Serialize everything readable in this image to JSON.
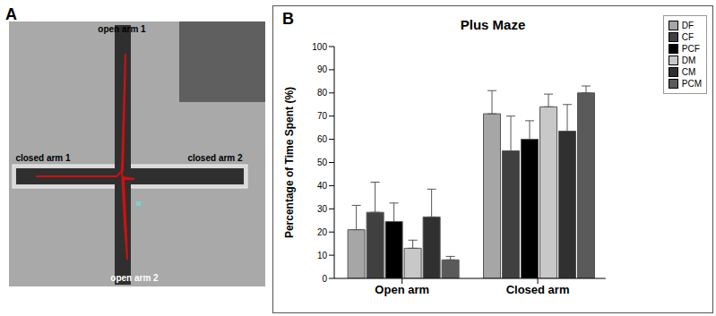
{
  "figure": {
    "panel_labels": [
      "A",
      "B"
    ],
    "photo": {
      "labels": [
        "open arm 1",
        "closed arm 1",
        "closed arm 2",
        "open arm 2"
      ]
    }
  },
  "chart_data": {
    "type": "bar",
    "title": "Plus Maze",
    "y_label": "Percentage of Time Spent (%)",
    "categories": [
      "Open arm",
      "Closed arm"
    ],
    "ylim": [
      0,
      100
    ],
    "yticks": [
      0,
      10,
      20,
      30,
      40,
      50,
      60,
      70,
      80,
      90,
      100
    ],
    "grid": false,
    "legend": "top right",
    "series": [
      {
        "name": "DF",
        "color": "#a6a6a6",
        "values": [
          21,
          71
        ],
        "errors": [
          10.5,
          10
        ]
      },
      {
        "name": "CF",
        "color": "#404040",
        "values": [
          28.5,
          55
        ],
        "errors": [
          13,
          15
        ]
      },
      {
        "name": "PCF",
        "color": "#000000",
        "values": [
          24.5,
          60
        ],
        "errors": [
          8,
          8
        ]
      },
      {
        "name": "DM",
        "color": "#c8c8c8",
        "values": [
          13,
          74
        ],
        "errors": [
          3.5,
          5.5
        ]
      },
      {
        "name": "CM",
        "color": "#303030",
        "values": [
          26.5,
          63.5
        ],
        "errors": [
          12,
          11.5
        ]
      },
      {
        "name": "PCM",
        "color": "#5a5a5a",
        "values": [
          8,
          80
        ],
        "errors": [
          1.5,
          3
        ]
      }
    ]
  }
}
